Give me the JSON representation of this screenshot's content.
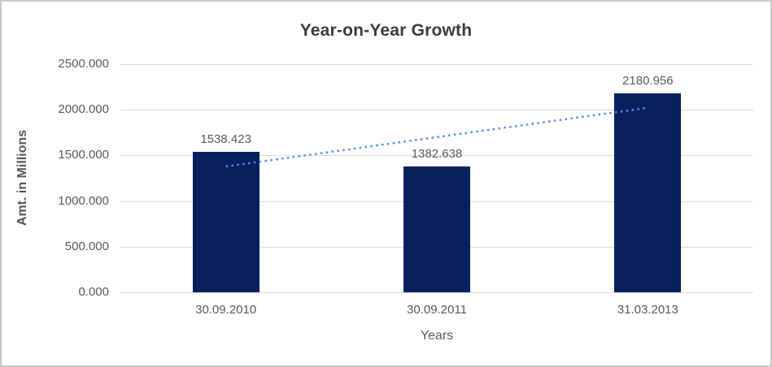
{
  "chart_data": {
    "type": "bar",
    "title": "Year-on-Year Growth",
    "xlabel": "Years",
    "ylabel": "Amt. in Millions",
    "categories": [
      "30.09.2010",
      "30.09.2011",
      "31.03.2013"
    ],
    "values": [
      1538.423,
      1382.638,
      2180.956
    ],
    "data_labels": [
      "1538.423",
      "1382.638",
      "2180.956"
    ],
    "ylim": [
      0,
      2500
    ],
    "ytick_step": 500,
    "ytick_labels": [
      "0.000",
      "500.000",
      "1000.000",
      "1500.000",
      "2000.000",
      "2500.000"
    ],
    "grid": true,
    "legend": false,
    "series_name": "Amt. in Millions",
    "trendline": {
      "type": "linear",
      "style": "dotted",
      "start_value": 1379.4,
      "end_value": 2021.9,
      "color": "#5b8fd5"
    },
    "colors": {
      "bar": "#08215e",
      "gridline": "#d9d9d9",
      "axis_text": "#595959",
      "title_text": "#3b3b3b",
      "chart_border": "#c9c9c9",
      "background": "#ffffff"
    }
  }
}
